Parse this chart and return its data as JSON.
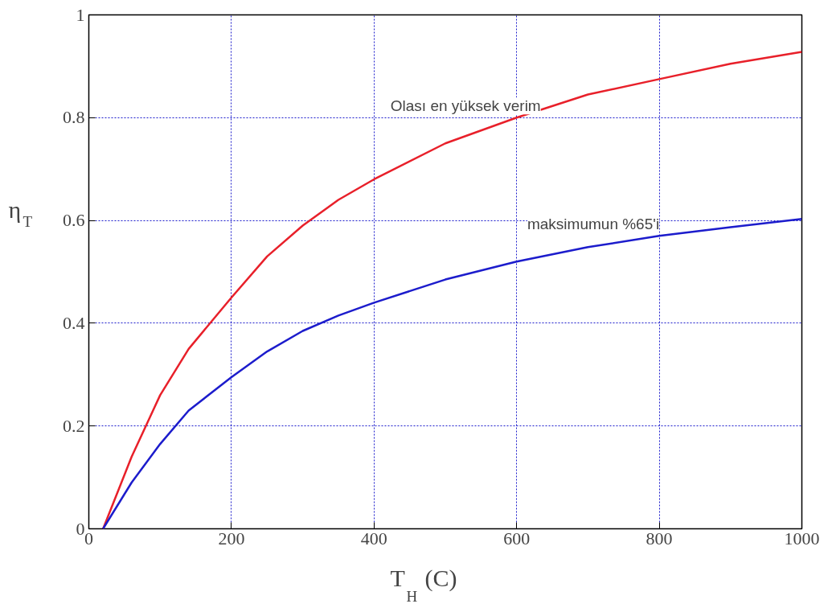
{
  "chart_data": {
    "type": "line",
    "xlabel": "T$_{H}$ (C)",
    "ylabel": "η$_{T}$",
    "xlim": [
      0,
      1000
    ],
    "ylim": [
      0,
      1
    ],
    "xticks": [
      0,
      200,
      400,
      600,
      800,
      1000
    ],
    "yticks": [
      0,
      0.2,
      0.4,
      0.6,
      0.8,
      1
    ],
    "grid": true,
    "marker": "none",
    "line_style": "solid",
    "series": [
      {
        "color": "#e8202a",
        "x": [
          20,
          60,
          100,
          140,
          200,
          250,
          300,
          350,
          400,
          500,
          600,
          700,
          800,
          900,
          1000
        ],
        "values": [
          0,
          0.14,
          0.26,
          0.35,
          0.45,
          0.53,
          0.59,
          0.64,
          0.68,
          0.75,
          0.8,
          0.845,
          0.875,
          0.905,
          0.928
        ]
      },
      {
        "color": "#1c1ccc",
        "x": [
          20,
          60,
          100,
          140,
          200,
          250,
          300,
          350,
          400,
          500,
          600,
          700,
          800,
          900,
          1000
        ],
        "values": [
          0,
          0.09,
          0.165,
          0.23,
          0.295,
          0.345,
          0.385,
          0.415,
          0.44,
          0.485,
          0.52,
          0.548,
          0.57,
          0.587,
          0.603
        ]
      }
    ],
    "annotations": [
      {
        "text": "Olası en yüksek verim",
        "x": 600,
        "y": 0.8
      },
      {
        "text": "maksimumun %65'i",
        "x": 800,
        "y": 0.57
      }
    ]
  }
}
